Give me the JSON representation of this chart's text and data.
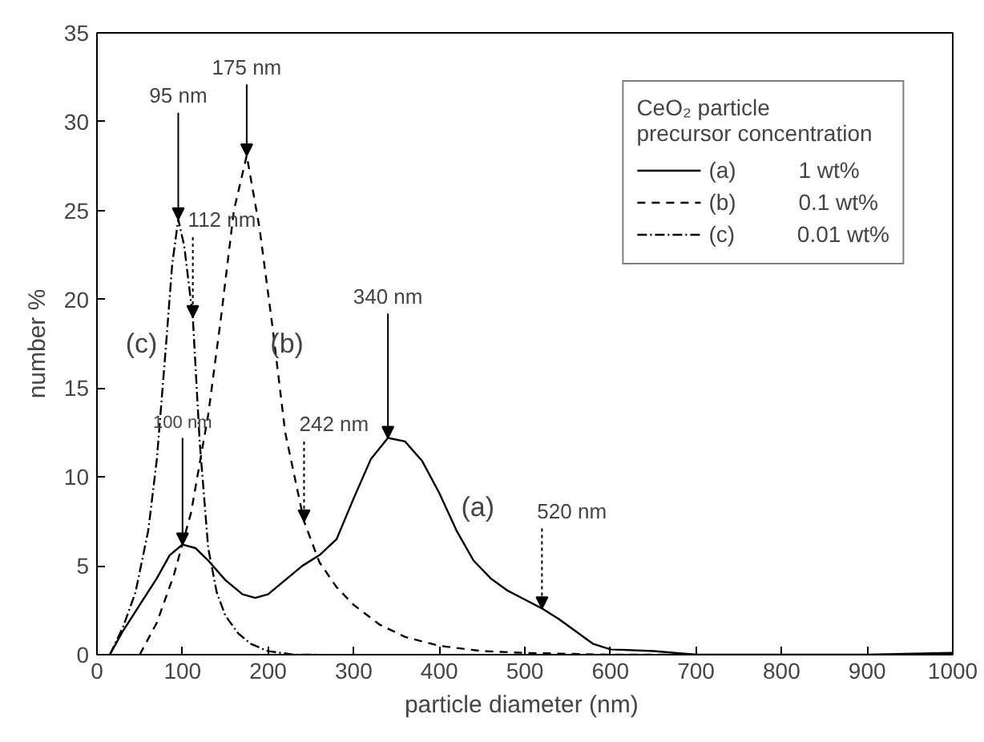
{
  "chart_data": {
    "type": "line",
    "xlabel": "particle diameter  (nm)",
    "ylabel": "number %",
    "legend_title": "CeO₂ particle\nprecursor concentration",
    "xlim": [
      0,
      1000
    ],
    "ylim": [
      0,
      35
    ],
    "xticks": [
      0,
      100,
      200,
      300,
      400,
      500,
      600,
      700,
      800,
      900,
      1000
    ],
    "yticks": [
      0,
      5,
      10,
      15,
      20,
      25,
      30,
      35
    ],
    "grid": false,
    "legend": "top right",
    "marker": "none",
    "series": [
      {
        "name": "(a)          1 wt%",
        "color": "#000000",
        "line_style": "solid",
        "x": [
          15,
          30,
          50,
          70,
          85,
          100,
          115,
          130,
          150,
          170,
          185,
          200,
          220,
          240,
          260,
          280,
          300,
          320,
          340,
          360,
          380,
          400,
          420,
          440,
          460,
          480,
          500,
          520,
          540,
          560,
          580,
          600,
          650,
          700,
          800,
          900,
          1000
        ],
        "values": [
          0,
          1.3,
          2.8,
          4.3,
          5.6,
          6.2,
          6.0,
          5.3,
          4.2,
          3.4,
          3.2,
          3.4,
          4.2,
          5.0,
          5.6,
          6.5,
          8.8,
          11,
          12.2,
          12.0,
          10.9,
          9.1,
          7.0,
          5.3,
          4.3,
          3.6,
          3.1,
          2.6,
          2.0,
          1.3,
          0.6,
          0.3,
          0.2,
          0,
          0,
          0,
          0.1
        ]
      },
      {
        "name": "(b)          0.1 wt%",
        "color": "#000000",
        "line_style": "dashed",
        "x": [
          50,
          70,
          90,
          110,
          130,
          145,
          160,
          175,
          190,
          205,
          220,
          242,
          260,
          280,
          300,
          330,
          360,
          400,
          450,
          500,
          600,
          700
        ],
        "values": [
          0,
          1.8,
          4.5,
          8,
          13.5,
          19,
          25,
          28.1,
          24,
          18.5,
          12.5,
          7.5,
          5.2,
          3.8,
          2.8,
          1.7,
          1,
          0.5,
          0.2,
          0.1,
          0,
          0
        ]
      },
      {
        "name": "(c)          0.01 wt%",
        "color": "#000000",
        "line_style": "dashdot",
        "x": [
          15,
          30,
          45,
          60,
          70,
          80,
          88,
          95,
          102,
          112,
          120,
          130,
          140,
          150,
          165,
          180,
          200,
          230,
          260
        ],
        "values": [
          0,
          1.5,
          3.5,
          7,
          11,
          17,
          22,
          24.5,
          23,
          19,
          12,
          6,
          3.5,
          2.2,
          1.2,
          0.6,
          0.2,
          0,
          0
        ]
      }
    ],
    "annotations": [
      {
        "text": "95 nm",
        "x": 95,
        "y": 24.5
      },
      {
        "text": "175 nm",
        "x": 175,
        "y": 28.1
      },
      {
        "text": "112 nm",
        "x": 112,
        "y": 19
      },
      {
        "text": "100 nm",
        "x": 100,
        "y": 6.2
      },
      {
        "text": "242 nm",
        "x": 242,
        "y": 7.5
      },
      {
        "text": "340 nm",
        "x": 340,
        "y": 12.2
      },
      {
        "text": "520 nm",
        "x": 520,
        "y": 2.6
      },
      "(a)",
      "(b)",
      "(c)"
    ]
  }
}
